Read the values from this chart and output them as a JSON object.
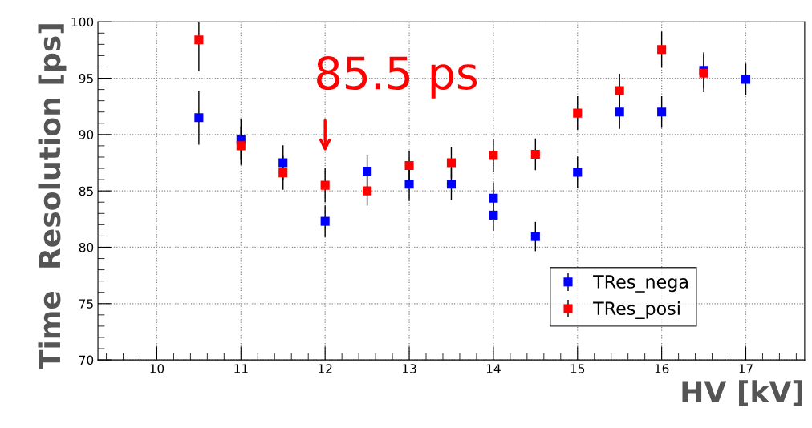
{
  "chart_data": {
    "type": "scatter",
    "xlabel": "HV [kV]",
    "ylabel": "Time  Resolution [ps]",
    "xlim": [
      9.3,
      17.7
    ],
    "ylim": [
      70,
      100
    ],
    "xticks": [
      10,
      11,
      12,
      13,
      14,
      15,
      16,
      17
    ],
    "yticks": [
      70,
      75,
      80,
      85,
      90,
      95,
      100
    ],
    "grid": true,
    "legend": "bottom right",
    "marker": "square",
    "annotations": [
      {
        "text": "85.5 ps",
        "x": 12,
        "y": 85.5
      }
    ],
    "series": [
      {
        "name": "TRes_nega",
        "color": "#0000ff",
        "x": [
          10.5,
          11,
          11.5,
          12,
          12.5,
          13,
          13.5,
          14,
          14,
          14.5,
          15,
          15.5,
          16,
          16.5,
          17
        ],
        "values": [
          91.5,
          89.55,
          87.5,
          82.3,
          86.75,
          85.6,
          85.6,
          84.35,
          82.85,
          80.95,
          86.65,
          92.0,
          92.0,
          95.7,
          94.9
        ],
        "errors": [
          2.4,
          1.8,
          1.55,
          1.4,
          1.4,
          1.5,
          1.4,
          1.4,
          1.4,
          1.3,
          1.4,
          1.5,
          1.4,
          1.6,
          1.4
        ]
      },
      {
        "name": "TRes_posi",
        "color": "#ff0000",
        "x": [
          10.5,
          11,
          11.5,
          12,
          12.5,
          13,
          13.5,
          14,
          14.5,
          15,
          15.5,
          16,
          16.5
        ],
        "values": [
          98.4,
          89.0,
          86.6,
          85.5,
          85.0,
          87.25,
          87.5,
          88.15,
          88.25,
          91.9,
          93.9,
          97.55,
          95.45
        ],
        "errors": [
          [
            95.6,
            100
          ],
          1.7,
          1.5,
          1.5,
          1.3,
          1.25,
          1.4,
          1.45,
          1.4,
          1.5,
          1.5,
          1.6,
          1.7
        ]
      }
    ]
  }
}
